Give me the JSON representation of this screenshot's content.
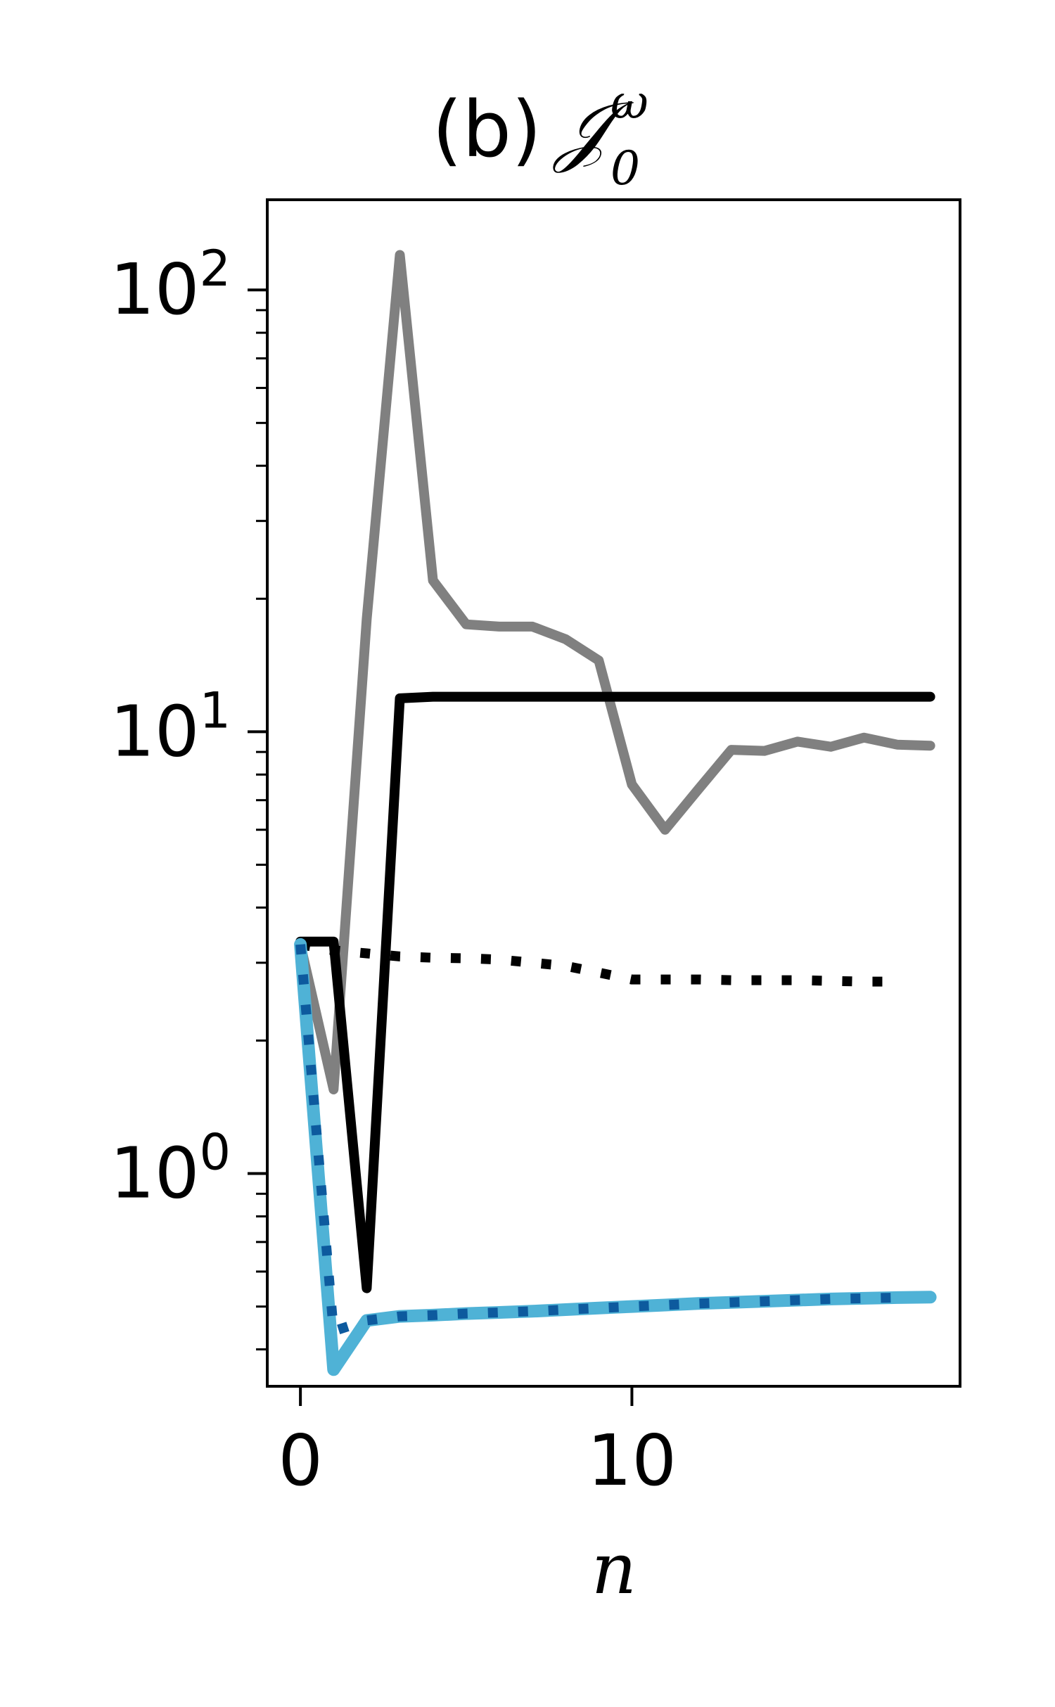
{
  "chart_data": {
    "type": "line",
    "title": "(b)",
    "title_math": {
      "base": "𝒥",
      "sup": "ω",
      "sub": "0"
    },
    "xlabel": "n",
    "ylabel": "",
    "xlim": [
      -1,
      19.9
    ],
    "ylim": [
      0.33,
      160
    ],
    "yscale": "log",
    "grid": false,
    "x_ticks": [
      {
        "value": 0,
        "label": "0"
      },
      {
        "value": 10,
        "label": "10"
      }
    ],
    "y_ticks": [
      {
        "value": 1,
        "base": "10",
        "exp": "0"
      },
      {
        "value": 10,
        "base": "10",
        "exp": "1"
      },
      {
        "value": 100,
        "base": "10",
        "exp": "2"
      }
    ],
    "series": [
      {
        "color": "#808080",
        "style": "solid",
        "x": [
          0,
          1,
          2,
          3,
          4,
          5,
          6,
          7,
          8,
          9,
          10,
          11,
          12,
          13,
          14,
          15,
          16,
          17,
          18,
          19
        ],
        "y": [
          3.3,
          1.55,
          18,
          120,
          22,
          17.5,
          17.3,
          17.3,
          16.2,
          14.5,
          7.6,
          6.0,
          7.4,
          9.1,
          9.05,
          9.5,
          9.25,
          9.7,
          9.35,
          9.3
        ]
      },
      {
        "color": "#000000",
        "style": "solid",
        "x": [
          0,
          1,
          2,
          3,
          4,
          5,
          6,
          7,
          8,
          9,
          10,
          11,
          12,
          13,
          14,
          15,
          16,
          17,
          18,
          19
        ],
        "y": [
          3.35,
          3.35,
          0.55,
          11.9,
          12.0,
          12.0,
          12.0,
          12.0,
          12.0,
          12.0,
          12.0,
          12.0,
          12.0,
          12.0,
          12.0,
          12.0,
          12.0,
          12.0,
          12.0,
          12.0
        ]
      },
      {
        "color": "#000000",
        "style": "dotted",
        "x": [
          0,
          1,
          2,
          3,
          4,
          5,
          6,
          7,
          8,
          9,
          10,
          11,
          12,
          13,
          14,
          15,
          16,
          17,
          18
        ],
        "y": [
          3.3,
          3.2,
          3.15,
          3.1,
          3.08,
          3.07,
          3.05,
          3.0,
          2.95,
          2.85,
          2.75,
          2.75,
          2.75,
          2.74,
          2.74,
          2.74,
          2.73,
          2.72,
          2.72
        ]
      },
      {
        "color": "#4fb2d6",
        "style": "solid",
        "x": [
          0,
          1,
          2,
          3,
          4,
          5,
          6,
          7,
          8,
          9,
          10,
          11,
          12,
          13,
          14,
          15,
          16,
          17,
          18,
          19
        ],
        "y": [
          3.3,
          0.36,
          0.465,
          0.475,
          0.478,
          0.482,
          0.485,
          0.488,
          0.492,
          0.496,
          0.5,
          0.504,
          0.508,
          0.511,
          0.514,
          0.517,
          0.52,
          0.522,
          0.524,
          0.525
        ]
      },
      {
        "color": "#0d5a9e",
        "style": "dotted",
        "x": [
          0,
          1,
          2,
          3,
          4,
          5,
          6,
          7,
          8,
          9,
          10,
          11,
          12,
          13,
          14,
          15,
          16,
          17,
          18
        ],
        "y": [
          3.3,
          0.44,
          0.465,
          0.475,
          0.478,
          0.482,
          0.485,
          0.488,
          0.492,
          0.496,
          0.5,
          0.504,
          0.508,
          0.511,
          0.514,
          0.517,
          0.52,
          0.522,
          0.524
        ]
      }
    ]
  }
}
